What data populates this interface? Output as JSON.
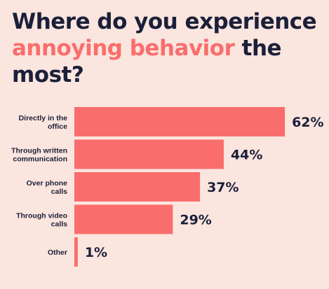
{
  "title": {
    "part1": "Where do you experience ",
    "highlight": "annoying behavior",
    "part2": " the most?"
  },
  "colors": {
    "background": "#fbe5df",
    "bar": "#f96e6c",
    "title_text": "#1b2039",
    "title_highlight": "#f96e6c",
    "label_text": "#1b2039"
  },
  "chart_data": {
    "type": "bar",
    "orientation": "horizontal",
    "categories": [
      [
        "Directly in the",
        "office"
      ],
      [
        "Through written",
        "communication"
      ],
      [
        "Over phone",
        "calls"
      ],
      [
        "Through video",
        "calls"
      ],
      [
        "Other"
      ]
    ],
    "values": [
      62,
      44,
      37,
      29,
      1
    ],
    "value_labels": [
      "62%",
      "44%",
      "37%",
      "29%",
      "1%"
    ],
    "value_unit": "%",
    "xlim": [
      0,
      100
    ],
    "grid": false,
    "legend": "none"
  }
}
